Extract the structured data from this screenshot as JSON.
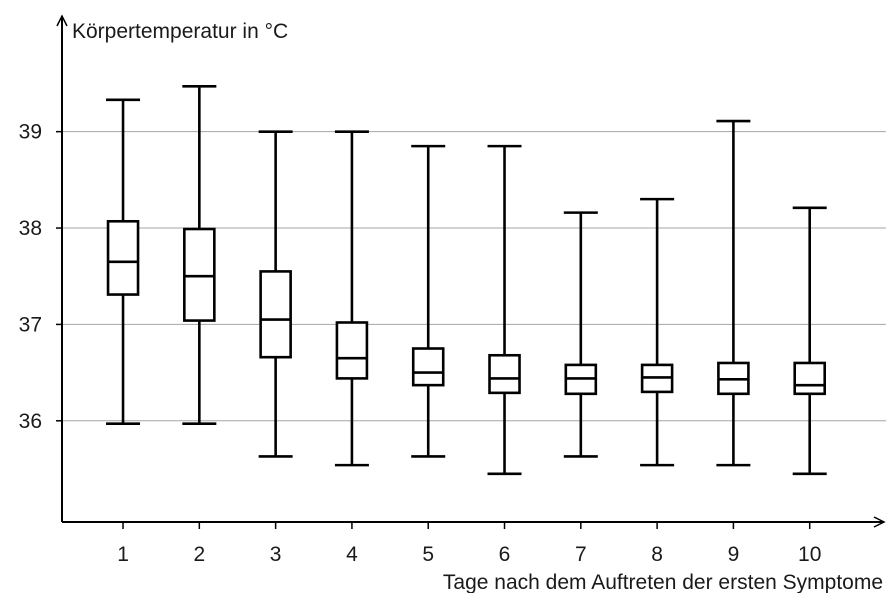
{
  "chart_data": {
    "type": "boxplot",
    "title": "",
    "ylabel": "Körpertemperatur in °C",
    "xlabel": "Tage nach dem Auftreten der ersten Symptome",
    "ylim": [
      34.95,
      40.2
    ],
    "xlim": [
      0.2,
      11
    ],
    "y_ticks": [
      36,
      37,
      38,
      39
    ],
    "y_tick_labels": [
      "36",
      "37",
      "38",
      "39"
    ],
    "grid": "horizontal",
    "categories": [
      "1",
      "2",
      "3",
      "4",
      "5",
      "6",
      "7",
      "8",
      "9",
      "10"
    ],
    "boxes": [
      {
        "min": 35.97,
        "q1": 37.31,
        "median": 37.65,
        "q3": 38.07,
        "max": 39.33
      },
      {
        "min": 35.97,
        "q1": 37.04,
        "median": 37.5,
        "q3": 37.99,
        "max": 39.47
      },
      {
        "min": 35.63,
        "q1": 36.66,
        "median": 37.05,
        "q3": 37.55,
        "max": 39.0
      },
      {
        "min": 35.54,
        "q1": 36.44,
        "median": 36.65,
        "q3": 37.02,
        "max": 39.0
      },
      {
        "min": 35.63,
        "q1": 36.37,
        "median": 36.5,
        "q3": 36.75,
        "max": 38.85
      },
      {
        "min": 35.45,
        "q1": 36.29,
        "median": 36.44,
        "q3": 36.68,
        "max": 38.85
      },
      {
        "min": 35.63,
        "q1": 36.28,
        "median": 36.44,
        "q3": 36.58,
        "max": 38.16
      },
      {
        "min": 35.54,
        "q1": 36.3,
        "median": 36.45,
        "q3": 36.58,
        "max": 38.3
      },
      {
        "min": 35.54,
        "q1": 36.28,
        "median": 36.43,
        "q3": 36.6,
        "max": 39.11
      },
      {
        "min": 35.45,
        "q1": 36.28,
        "median": 36.37,
        "q3": 36.6,
        "max": 38.21
      }
    ]
  }
}
